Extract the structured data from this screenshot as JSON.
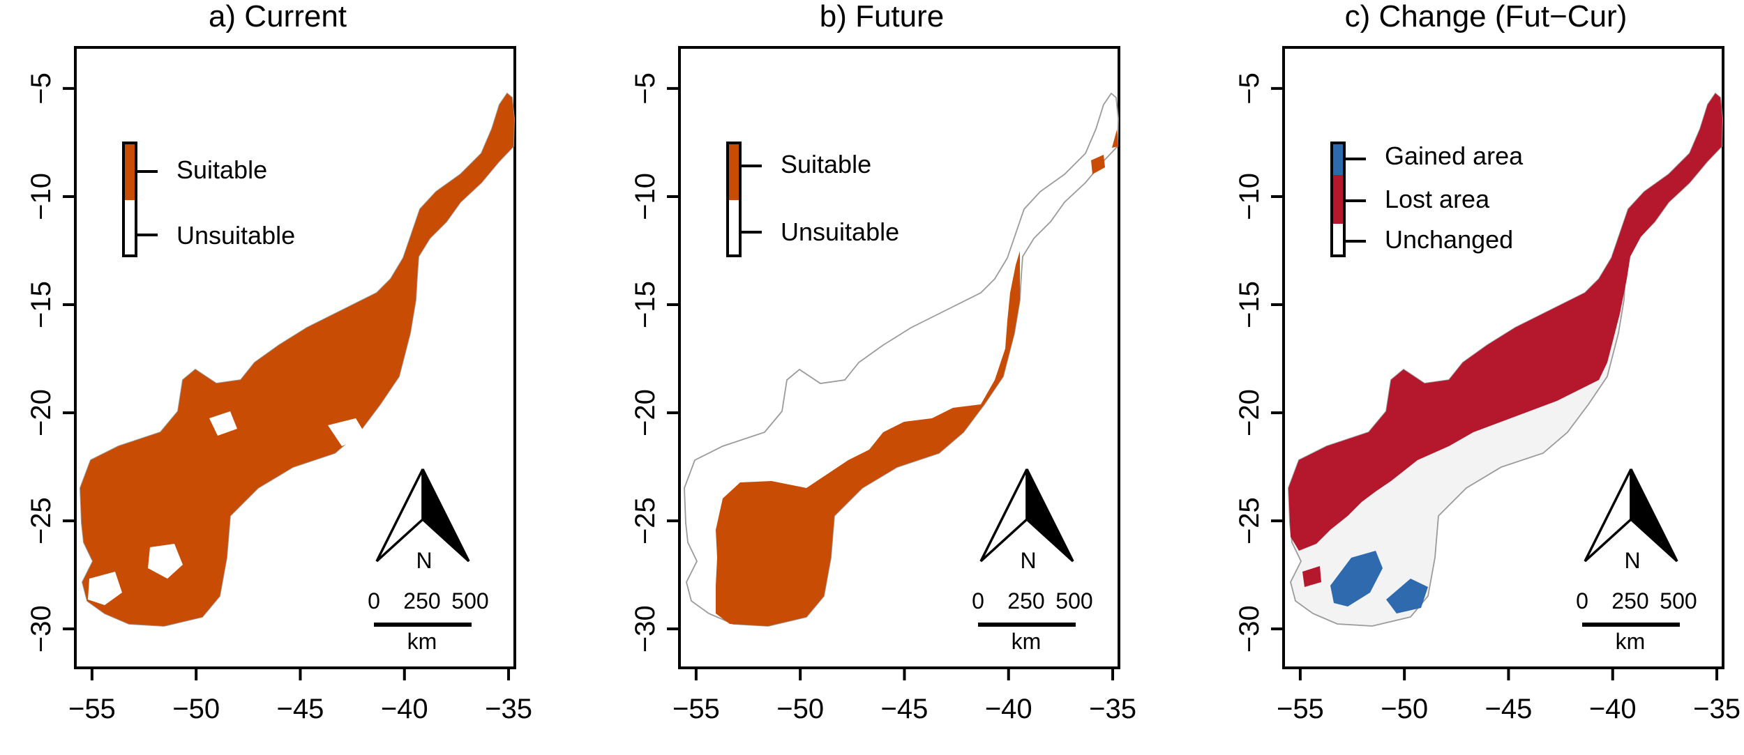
{
  "colors": {
    "suitable": "#c94c04",
    "gained": "#2e6aad",
    "lost": "#b5172c",
    "unchanged": "#f3f3f3",
    "coast": "#9a9a9a"
  },
  "axes": {
    "x_ticks": [
      "−55",
      "−50",
      "−45",
      "−40",
      "−35"
    ],
    "y_ticks": [
      "−5",
      "−10",
      "−15",
      "−20",
      "−25",
      "−30"
    ],
    "x_values": [
      -55,
      -50,
      -45,
      -40,
      -35
    ],
    "y_values": [
      -5,
      -10,
      -15,
      -20,
      -25,
      -30
    ],
    "xlim": [
      -55.8,
      -34.7
    ],
    "ylim": [
      -31.8,
      -3.1
    ]
  },
  "scalebar": {
    "labels": [
      "0",
      "250",
      "500"
    ],
    "unit": "km"
  },
  "north_label": "N",
  "panels": [
    {
      "id": "current",
      "title": "a) Current",
      "legend": [
        {
          "label": "Suitable",
          "color_key": "suitable"
        },
        {
          "label": "Unsuitable",
          "color_key": "unchanged"
        }
      ]
    },
    {
      "id": "future",
      "title": "b) Future",
      "legend": [
        {
          "label": "Suitable",
          "color_key": "suitable"
        },
        {
          "label": "Unsuitable",
          "color_key": "unchanged"
        }
      ]
    },
    {
      "id": "change",
      "title": "c) Change (Fut−Cur)",
      "legend": [
        {
          "label": "Gained area",
          "color_key": "gained"
        },
        {
          "label": "Lost area",
          "color_key": "lost"
        },
        {
          "label": "Unchanged",
          "color_key": "unchanged"
        }
      ]
    }
  ]
}
